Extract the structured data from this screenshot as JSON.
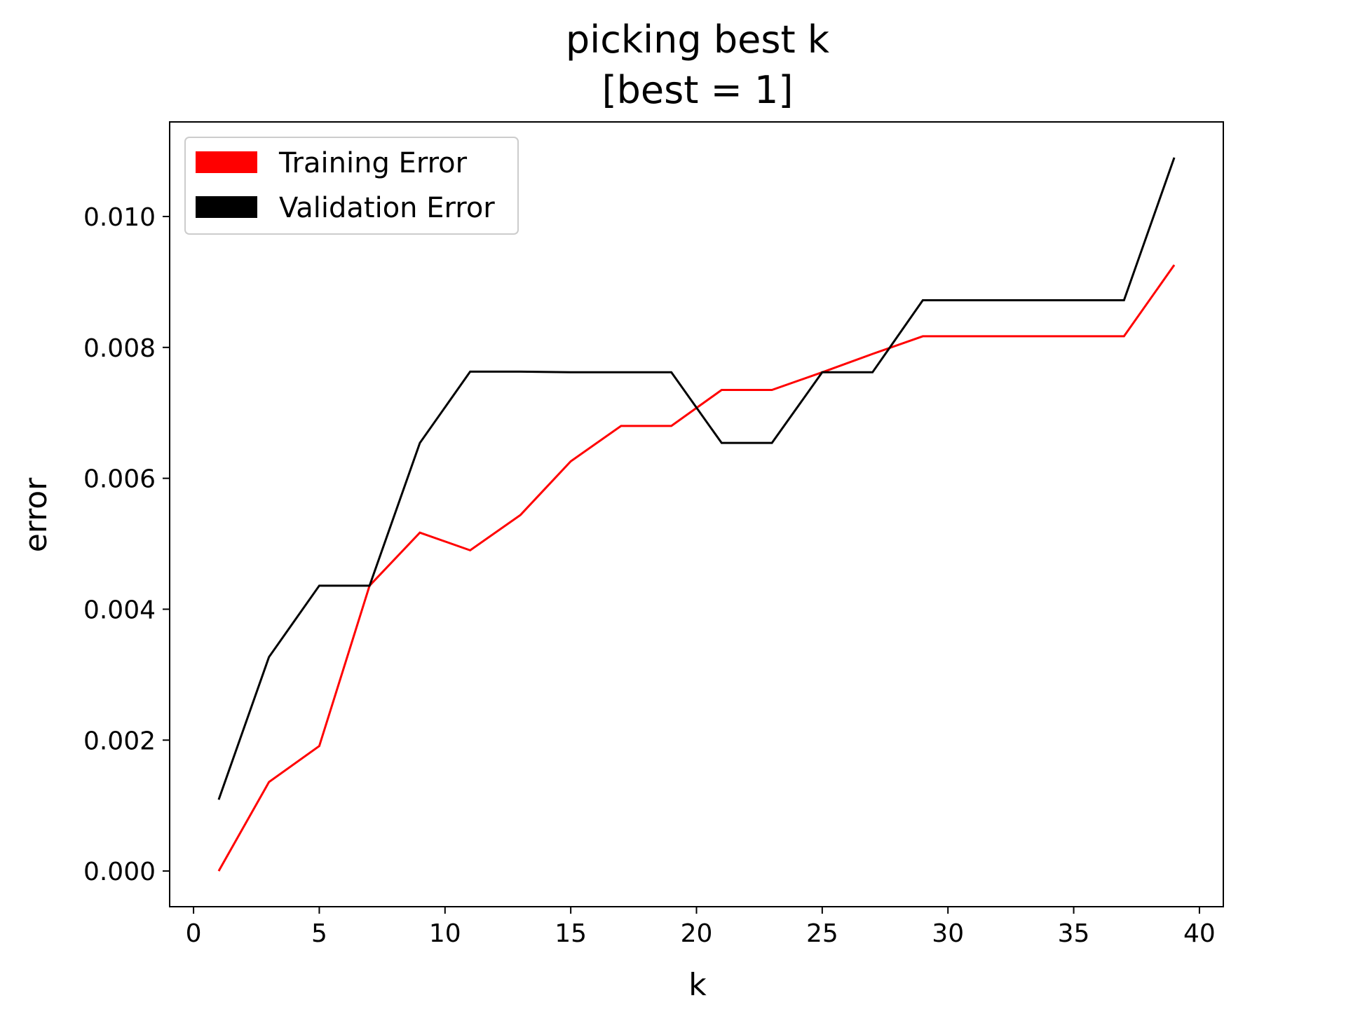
{
  "chart_data": {
    "type": "line",
    "title": [
      "picking best k",
      "[best = 1]"
    ],
    "xlabel": "k",
    "ylabel": "error",
    "xlim": [
      -0.95,
      40.95
    ],
    "ylim": [
      -0.000545,
      0.011445
    ],
    "xticks": [
      0,
      5,
      10,
      15,
      20,
      25,
      30,
      35,
      40
    ],
    "xtick_labels": [
      "0",
      "5",
      "10",
      "15",
      "20",
      "25",
      "30",
      "35",
      "40"
    ],
    "yticks": [
      0.0,
      0.002,
      0.004,
      0.006,
      0.008,
      0.01
    ],
    "ytick_labels": [
      "0.000",
      "0.002",
      "0.004",
      "0.006",
      "0.008",
      "0.010"
    ],
    "grid": false,
    "legend_position": "upper-left",
    "x": [
      1,
      3,
      5,
      7,
      9,
      11,
      13,
      15,
      17,
      19,
      21,
      23,
      25,
      27,
      29,
      31,
      33,
      35,
      37,
      39
    ],
    "series": [
      {
        "name": "Training Error",
        "color": "#ff0000",
        "values": [
          0.0,
          0.00136,
          0.00191,
          0.00436,
          0.00517,
          0.0049,
          0.00544,
          0.00626,
          0.0068,
          0.0068,
          0.00735,
          0.00735,
          0.00762,
          0.0079,
          0.00817,
          0.00817,
          0.00817,
          0.00817,
          0.00817,
          0.00926
        ]
      },
      {
        "name": "Validation Error",
        "color": "#000000",
        "values": [
          0.00109,
          0.00327,
          0.00436,
          0.00436,
          0.00654,
          0.00763,
          0.00763,
          0.00762,
          0.00762,
          0.00762,
          0.00654,
          0.00654,
          0.00762,
          0.00762,
          0.00872,
          0.00872,
          0.00872,
          0.00872,
          0.00872,
          0.0109
        ]
      }
    ]
  }
}
